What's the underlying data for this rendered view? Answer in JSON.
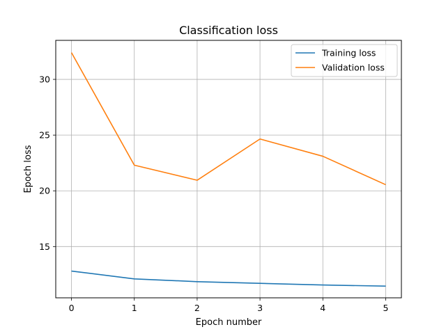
{
  "chart_data": {
    "type": "line",
    "title": "Classification loss",
    "xlabel": "Epoch number",
    "ylabel": "Epoch loss",
    "x": [
      0,
      1,
      2,
      3,
      4,
      5
    ],
    "series": [
      {
        "name": "Training loss",
        "color": "#1f77b4",
        "values": [
          12.8,
          12.1,
          11.85,
          11.7,
          11.55,
          11.45
        ]
      },
      {
        "name": "Validation loss",
        "color": "#ff7f0e",
        "values": [
          32.4,
          22.3,
          20.95,
          24.65,
          23.1,
          20.55
        ]
      }
    ],
    "xlim": [
      -0.25,
      5.25
    ],
    "ylim": [
      10.4,
      33.5
    ],
    "xticks": [
      "0",
      "1",
      "2",
      "3",
      "4",
      "5"
    ],
    "yticks": [
      "15",
      "20",
      "25",
      "30"
    ],
    "grid": true,
    "legend": "upper right"
  }
}
